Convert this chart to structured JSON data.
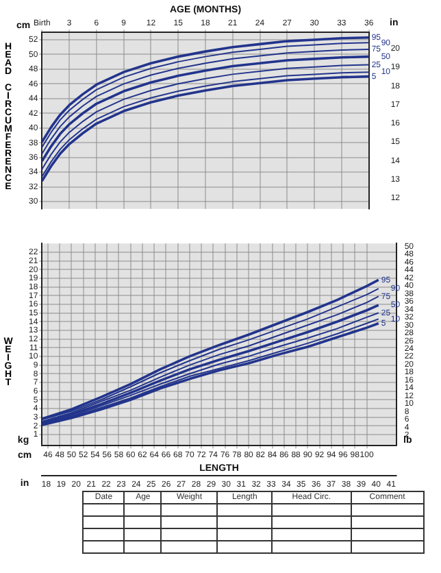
{
  "chart_data": [
    {
      "type": "line",
      "xlabel": "AGE (MONTHS)",
      "ylabel": "HEAD CIRCUMFERENCE",
      "grid": true,
      "legend": false,
      "x": [
        0,
        1,
        2,
        3,
        4.5,
        6,
        9,
        12,
        15,
        18,
        21,
        24,
        27,
        30,
        33,
        36
      ],
      "xlim": [
        0,
        36
      ],
      "xticks": [
        {
          "value": 0,
          "label": "Birth"
        },
        3,
        6,
        9,
        12,
        15,
        18,
        21,
        24,
        27,
        30,
        33,
        36
      ],
      "ylim": [
        29,
        53
      ],
      "yticks": [
        30,
        32,
        34,
        36,
        38,
        40,
        42,
        44,
        46,
        48,
        50,
        52
      ],
      "y2lim": [
        11.417,
        20.866
      ],
      "y2ticks": [
        12,
        13,
        14,
        15,
        16,
        17,
        18,
        19,
        20
      ],
      "annotations": [
        "cm",
        "in"
      ],
      "series": [
        {
          "name": "95",
          "color": "#22348c",
          "values": [
            38.1,
            40.1,
            41.8,
            43.1,
            44.6,
            45.9,
            47.6,
            48.8,
            49.7,
            50.4,
            51.0,
            51.4,
            51.8,
            52.0,
            52.2,
            52.3
          ]
        },
        {
          "name": "90",
          "color": "#22348c",
          "values": [
            37.4,
            39.4,
            41.1,
            42.4,
            43.9,
            45.2,
            46.9,
            48.1,
            49.0,
            49.7,
            50.3,
            50.7,
            51.1,
            51.3,
            51.5,
            51.6
          ]
        },
        {
          "name": "75",
          "color": "#22348c",
          "values": [
            36.5,
            38.5,
            40.2,
            41.5,
            43.0,
            44.3,
            46.0,
            47.2,
            48.1,
            48.8,
            49.4,
            49.8,
            50.2,
            50.4,
            50.6,
            50.7
          ]
        },
        {
          "name": "50",
          "color": "#22348c",
          "values": [
            35.5,
            37.5,
            39.2,
            40.5,
            42.0,
            43.3,
            45.0,
            46.2,
            47.1,
            47.8,
            48.4,
            48.8,
            49.2,
            49.4,
            49.6,
            49.7
          ]
        },
        {
          "name": "25",
          "color": "#22348c",
          "values": [
            34.4,
            36.4,
            38.1,
            39.4,
            40.9,
            42.2,
            43.9,
            45.1,
            46.0,
            46.7,
            47.3,
            47.7,
            48.1,
            48.3,
            48.5,
            48.6
          ]
        },
        {
          "name": "10",
          "color": "#22348c",
          "values": [
            33.4,
            35.4,
            37.1,
            38.4,
            39.9,
            41.2,
            42.9,
            44.1,
            45.0,
            45.7,
            46.3,
            46.7,
            47.1,
            47.3,
            47.5,
            47.6
          ]
        },
        {
          "name": "5",
          "color": "#22348c",
          "values": [
            32.8,
            34.8,
            36.5,
            37.8,
            39.3,
            40.6,
            42.3,
            43.5,
            44.4,
            45.1,
            45.7,
            46.1,
            46.5,
            46.7,
            46.9,
            47.0
          ]
        }
      ]
    },
    {
      "type": "line",
      "xlabel": "LENGTH",
      "ylabel": "WEIGHT",
      "grid": true,
      "legend": false,
      "x": [
        45,
        50,
        55,
        60,
        65,
        70,
        75,
        80,
        85,
        90,
        95,
        100,
        102
      ],
      "xlim": [
        45,
        105
      ],
      "xticks": [
        46,
        48,
        50,
        52,
        54,
        56,
        58,
        60,
        62,
        64,
        66,
        68,
        70,
        72,
        74,
        76,
        78,
        80,
        82,
        84,
        86,
        88,
        90,
        92,
        94,
        96,
        98,
        100
      ],
      "x2lim": [
        17.72,
        41.34
      ],
      "x2ticks": [
        18,
        19,
        20,
        21,
        22,
        23,
        24,
        25,
        26,
        27,
        28,
        29,
        30,
        31,
        32,
        33,
        34,
        35,
        36,
        37,
        38,
        39,
        40,
        41
      ],
      "ylim": [
        -0.3,
        23
      ],
      "yticks": [
        1,
        2,
        3,
        4,
        5,
        6,
        7,
        8,
        9,
        10,
        11,
        12,
        13,
        14,
        15,
        16,
        17,
        18,
        19,
        20,
        21,
        22
      ],
      "y2lim": [
        -0.661,
        50.71
      ],
      "y2ticks": [
        2,
        4,
        6,
        8,
        10,
        12,
        14,
        16,
        18,
        20,
        22,
        24,
        26,
        28,
        30,
        32,
        34,
        36,
        38,
        40,
        42,
        44,
        46,
        48,
        50
      ],
      "annotations": [
        "kg",
        "lb",
        "cm",
        "in",
        "Date",
        "Age",
        "Weight",
        "Length",
        "Head Circ.",
        "Comment"
      ],
      "series": [
        {
          "name": "95",
          "color": "#22348c",
          "values": [
            2.8,
            3.9,
            5.3,
            6.8,
            8.5,
            10.0,
            11.3,
            12.5,
            13.8,
            15.1,
            16.5,
            18.1,
            18.8
          ]
        },
        {
          "name": "90",
          "color": "#22348c",
          "values": [
            2.7,
            3.7,
            5.0,
            6.5,
            8.1,
            9.5,
            10.8,
            11.9,
            13.1,
            14.3,
            15.7,
            17.1,
            17.8
          ]
        },
        {
          "name": "75",
          "color": "#22348c",
          "values": [
            2.5,
            3.5,
            4.8,
            6.1,
            7.6,
            9.0,
            10.2,
            11.2,
            12.4,
            13.6,
            14.8,
            16.2,
            16.9
          ]
        },
        {
          "name": "50",
          "color": "#22348c",
          "values": [
            2.4,
            3.3,
            4.5,
            5.8,
            7.2,
            8.5,
            9.6,
            10.6,
            11.7,
            12.8,
            14.0,
            15.3,
            15.9
          ]
        },
        {
          "name": "25",
          "color": "#22348c",
          "values": [
            2.3,
            3.1,
            4.3,
            5.5,
            6.8,
            8.0,
            9.1,
            10.0,
            11.1,
            12.1,
            13.2,
            14.5,
            15.0
          ]
        },
        {
          "name": "10",
          "color": "#22348c",
          "values": [
            2.2,
            3.0,
            4.1,
            5.2,
            6.5,
            7.7,
            8.6,
            9.5,
            10.5,
            11.5,
            12.6,
            13.8,
            14.3
          ]
        },
        {
          "name": "5",
          "color": "#22348c",
          "values": [
            2.1,
            2.9,
            3.9,
            5.0,
            6.3,
            7.4,
            8.4,
            9.2,
            10.2,
            11.1,
            12.2,
            13.3,
            13.8
          ]
        }
      ]
    }
  ]
}
